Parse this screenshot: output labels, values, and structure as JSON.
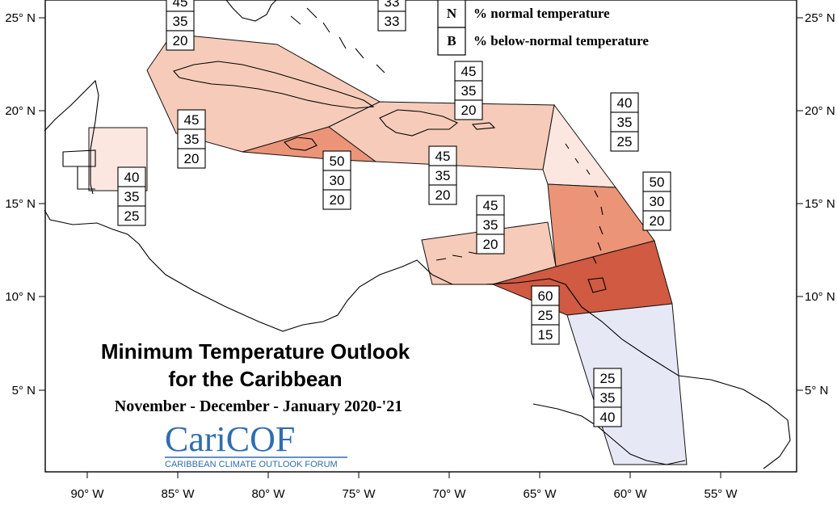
{
  "map": {
    "title_line1": "Minimum Temperature Outlook",
    "title_line2": "for the Caribbean",
    "subtitle": "November - December - January 2020-'21",
    "logo": {
      "name": "CariCOF",
      "tagline": "CARIBBEAN CLIMATE OUTLOOK FORUM",
      "color": "#2f6db0"
    },
    "legend": [
      {
        "key": "N",
        "text": "% normal temperature"
      },
      {
        "key": "B",
        "text": "% below-normal temperature"
      }
    ],
    "x_ticks": [
      "90° W",
      "85° W",
      "80° W",
      "75° W",
      "70° W",
      "65° W",
      "60° W",
      "55° W"
    ],
    "y_ticks_left": [
      "25° N",
      "20° N",
      "15° N",
      "10° N",
      "5° N"
    ],
    "y_ticks_right": [
      "25° N",
      "20° N",
      "15° N",
      "10° N",
      "5° N"
    ],
    "colors": {
      "lightest": "#fbe7df",
      "light": "#f7cbb9",
      "medium": "#ec9478",
      "dark": "#d05a42",
      "below": "#e6e9f5"
    },
    "probability_boxes": [
      {
        "id": "top-left",
        "values": [
          "45",
          "35",
          "20"
        ]
      },
      {
        "id": "top-center",
        "values": [
          "33",
          "33"
        ]
      },
      {
        "id": "leeward-north",
        "values": [
          "45",
          "35",
          "20"
        ]
      },
      {
        "id": "cuba",
        "values": [
          "45",
          "35",
          "20"
        ]
      },
      {
        "id": "belize",
        "values": [
          "40",
          "35",
          "25"
        ]
      },
      {
        "id": "jamaica",
        "values": [
          "50",
          "30",
          "20"
        ]
      },
      {
        "id": "hispaniola",
        "values": [
          "45",
          "35",
          "20"
        ]
      },
      {
        "id": "leeward-islands",
        "values": [
          "40",
          "35",
          "25"
        ]
      },
      {
        "id": "windward-islands",
        "values": [
          "50",
          "30",
          "20"
        ]
      },
      {
        "id": "abc-islands",
        "values": [
          "45",
          "35",
          "20"
        ]
      },
      {
        "id": "trinidad",
        "values": [
          "60",
          "25",
          "15"
        ]
      },
      {
        "id": "guianas",
        "values": [
          "25",
          "35",
          "40"
        ]
      }
    ]
  }
}
